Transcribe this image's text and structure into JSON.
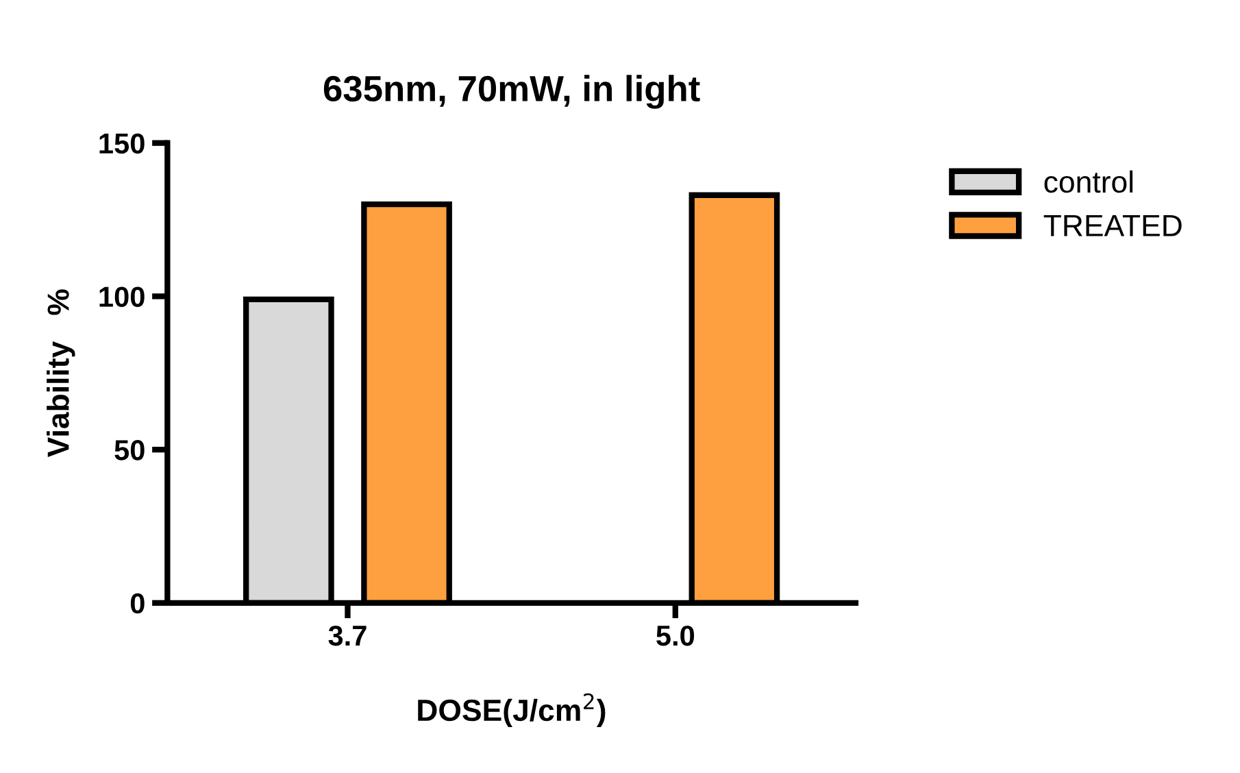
{
  "chart_data": {
    "type": "bar",
    "title": "635nm, 70mW, in light",
    "xlabel": "DOSE(J/cm$^{2}$)",
    "ylabel": "Viability   %",
    "categories": [
      "3.7",
      "5.0"
    ],
    "series": [
      {
        "name": "control",
        "color": "#d9d9d9",
        "values": [
          99,
          null
        ]
      },
      {
        "name": "TREATED",
        "color": "#ffa040",
        "values": [
          130,
          133
        ]
      }
    ],
    "ylim": [
      0,
      150
    ],
    "yticks": [
      0,
      50,
      100,
      150
    ],
    "grid": false,
    "legend": "right"
  }
}
